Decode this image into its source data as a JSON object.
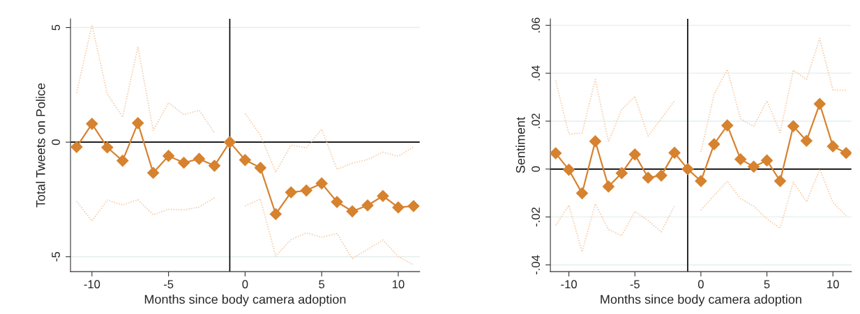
{
  "chart_data": [
    {
      "type": "line",
      "xlabel": "Months since body camera adoption",
      "ylabel": "Total Tweets on Police",
      "x": [
        -11,
        -10,
        -9,
        -8,
        -7,
        -6,
        -5,
        -4,
        -3,
        -2,
        -1,
        0,
        1,
        2,
        3,
        4,
        5,
        6,
        7,
        8,
        9,
        10,
        11
      ],
      "series": [
        {
          "color": "#f5c9a2",
          "line_style": "dotted",
          "marker": "none",
          "values": [
            2.15,
            5.11,
            2.1,
            1.09,
            4.16,
            0.51,
            1.72,
            1.2,
            1.39,
            0.4,
            null,
            1.25,
            0.3,
            -1.31,
            -0.13,
            -0.25,
            0.56,
            -1.19,
            -0.92,
            -0.76,
            -0.44,
            -0.62,
            -0.21
          ]
        },
        {
          "color": "#f5c9a2",
          "line_style": "dotted",
          "marker": "none",
          "values": [
            -2.58,
            -3.44,
            -2.53,
            -2.74,
            -2.51,
            -3.17,
            -2.93,
            -2.96,
            -2.83,
            -2.43,
            null,
            -2.79,
            -2.48,
            -4.97,
            -4.25,
            -3.96,
            -4.15,
            -3.99,
            -5.08,
            -4.68,
            -4.27,
            -4.99,
            -5.36
          ]
        },
        {
          "color": "#d6822f",
          "line_style": "solid",
          "marker": "diamond",
          "values": [
            -0.21,
            0.8,
            -0.23,
            -0.81,
            0.83,
            -1.34,
            -0.6,
            -0.9,
            -0.73,
            -1.03,
            0,
            -0.78,
            -1.12,
            -3.14,
            -2.19,
            -2.11,
            -1.8,
            -2.61,
            -3.02,
            -2.76,
            -2.35,
            -2.85,
            -2.79
          ]
        }
      ],
      "xlim": [
        -11.4,
        11.4
      ],
      "xticks": [
        -10,
        -5,
        0,
        5,
        10
      ],
      "ylim": [
        -5.65,
        5.38
      ],
      "yticks": [
        -5,
        0,
        5
      ],
      "ref_lines": [
        {
          "axis": "x",
          "value": -1,
          "color": "#000000"
        },
        {
          "axis": "y",
          "value": 0,
          "color": "#000000"
        }
      ],
      "grid": "y",
      "legend": false
    },
    {
      "type": "line",
      "xlabel": "Months since body camera adoption",
      "ylabel": "Sentiment",
      "x": [
        -11,
        -10,
        -9,
        -8,
        -7,
        -6,
        -5,
        -4,
        -3,
        -2,
        -1,
        0,
        1,
        2,
        3,
        4,
        5,
        6,
        7,
        8,
        9,
        10,
        11
      ],
      "series": [
        {
          "color": "#f5c9a2",
          "line_style": "dotted",
          "marker": "none",
          "values": [
            0.0369,
            0.0146,
            0.015,
            0.0374,
            0.0114,
            0.0248,
            0.0303,
            0.0138,
            0.021,
            0.0285,
            null,
            0.0072,
            0.0312,
            0.0416,
            0.021,
            0.0178,
            0.0285,
            0.0152,
            0.0413,
            0.0374,
            0.0545,
            0.033,
            0.0329
          ]
        },
        {
          "color": "#f5c9a2",
          "line_style": "dotted",
          "marker": "none",
          "values": [
            -0.0235,
            -0.0151,
            -0.0345,
            -0.0145,
            -0.0252,
            -0.0278,
            -0.0177,
            -0.0215,
            -0.0262,
            -0.0153,
            null,
            -0.0171,
            -0.011,
            -0.0051,
            -0.0123,
            -0.0155,
            -0.0208,
            -0.0247,
            -0.0054,
            -0.0137,
            0.0,
            -0.0139,
            -0.0195
          ]
        },
        {
          "color": "#d6822f",
          "line_style": "solid",
          "marker": "diamond",
          "values": [
            0.0066,
            -0.0003,
            -0.0101,
            0.0116,
            -0.0073,
            -0.0017,
            0.0061,
            -0.0036,
            -0.0027,
            0.0068,
            0,
            -0.005,
            0.0104,
            0.0182,
            0.0041,
            0.001,
            0.0036,
            -0.005,
            0.0179,
            0.0118,
            0.0272,
            0.0095,
            0.0067
          ]
        }
      ],
      "xlim": [
        -11.4,
        11.4
      ],
      "xticks": [
        -10,
        -5,
        0,
        5,
        10
      ],
      "ylim": [
        -0.0428,
        0.0627
      ],
      "yticks": [
        {
          "value": -0.04,
          "label": "-.04"
        },
        {
          "value": -0.02,
          "label": "-.02"
        },
        {
          "value": 0,
          "label": "0"
        },
        {
          "value": 0.02,
          "label": ".02"
        },
        {
          "value": 0.04,
          "label": ".04"
        },
        {
          "value": 0.06,
          "label": ".06"
        }
      ],
      "ref_lines": [
        {
          "axis": "x",
          "value": -1,
          "color": "#000000"
        },
        {
          "axis": "y",
          "value": 0,
          "color": "#000000"
        }
      ],
      "grid": "y",
      "legend": false
    }
  ]
}
